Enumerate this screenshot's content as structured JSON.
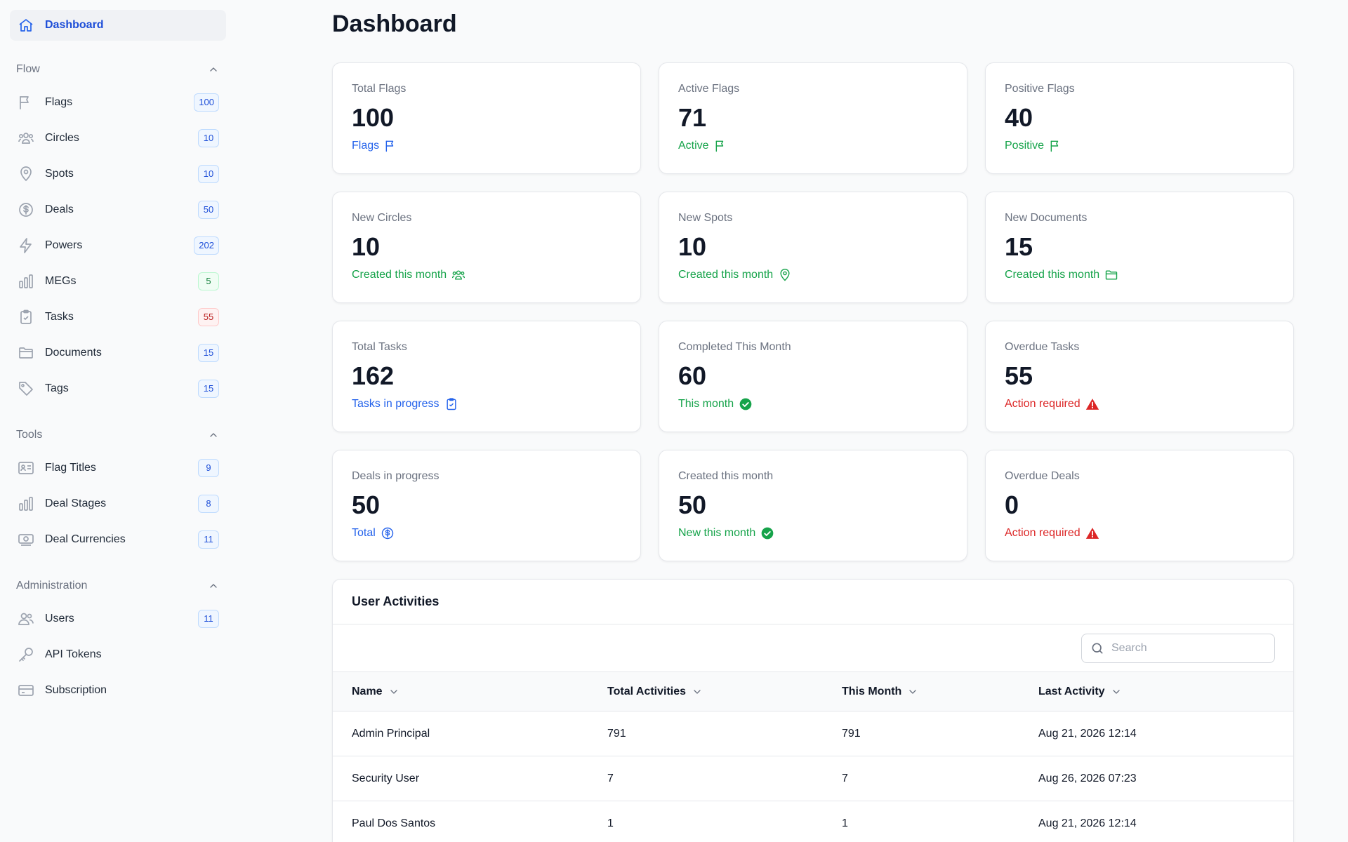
{
  "sidebar": {
    "dashboard": {
      "label": "Dashboard",
      "icon": "home-icon"
    },
    "sections": [
      {
        "title": "Flow",
        "items": [
          {
            "label": "Flags",
            "count": "100",
            "badge": "blue",
            "icon": "flag-icon"
          },
          {
            "label": "Circles",
            "count": "10",
            "badge": "blue",
            "icon": "users-group-icon"
          },
          {
            "label": "Spots",
            "count": "10",
            "badge": "blue",
            "icon": "map-pin-icon"
          },
          {
            "label": "Deals",
            "count": "50",
            "badge": "blue",
            "icon": "dollar-circle-icon"
          },
          {
            "label": "Powers",
            "count": "202",
            "badge": "blue",
            "icon": "bolt-icon"
          },
          {
            "label": "MEGs",
            "count": "5",
            "badge": "green",
            "icon": "bar-chart-icon"
          },
          {
            "label": "Tasks",
            "count": "55",
            "badge": "red",
            "icon": "clipboard-icon"
          },
          {
            "label": "Documents",
            "count": "15",
            "badge": "blue",
            "icon": "folder-icon"
          },
          {
            "label": "Tags",
            "count": "15",
            "badge": "blue",
            "icon": "tag-icon"
          }
        ]
      },
      {
        "title": "Tools",
        "items": [
          {
            "label": "Flag Titles",
            "count": "9",
            "badge": "blue",
            "icon": "id-card-icon"
          },
          {
            "label": "Deal Stages",
            "count": "8",
            "badge": "blue",
            "icon": "bar-chart-icon"
          },
          {
            "label": "Deal Currencies",
            "count": "11",
            "badge": "blue",
            "icon": "banknote-icon"
          }
        ]
      },
      {
        "title": "Administration",
        "items": [
          {
            "label": "Users",
            "count": "11",
            "badge": "blue",
            "icon": "users-icon"
          },
          {
            "label": "API Tokens",
            "count": "",
            "badge": "",
            "icon": "key-icon"
          },
          {
            "label": "Subscription",
            "count": "",
            "badge": "",
            "icon": "credit-card-icon"
          }
        ]
      }
    ]
  },
  "main": {
    "title": "Dashboard",
    "cards": [
      {
        "title": "Total Flags",
        "value": "100",
        "foot": "Flags",
        "color": "blue",
        "icon": "flag-icon"
      },
      {
        "title": "Active Flags",
        "value": "71",
        "foot": "Active",
        "color": "green",
        "icon": "flag-icon"
      },
      {
        "title": "Positive Flags",
        "value": "40",
        "foot": "Positive",
        "color": "green",
        "icon": "flag-icon"
      },
      {
        "title": "New Circles",
        "value": "10",
        "foot": "Created this month",
        "color": "green",
        "icon": "users-group-icon"
      },
      {
        "title": "New Spots",
        "value": "10",
        "foot": "Created this month",
        "color": "green",
        "icon": "map-pin-icon"
      },
      {
        "title": "New Documents",
        "value": "15",
        "foot": "Created this month",
        "color": "green",
        "icon": "folder-icon"
      },
      {
        "title": "Total Tasks",
        "value": "162",
        "foot": "Tasks in progress",
        "color": "blue",
        "icon": "clipboard-icon"
      },
      {
        "title": "Completed This Month",
        "value": "60",
        "foot": "This month",
        "color": "green",
        "icon": "check-circle-icon"
      },
      {
        "title": "Overdue Tasks",
        "value": "55",
        "foot": "Action required",
        "color": "red",
        "icon": "warning-icon"
      },
      {
        "title": "Deals in progress",
        "value": "50",
        "foot": "Total",
        "color": "blue",
        "icon": "dollar-circle-icon"
      },
      {
        "title": "Created this month",
        "value": "50",
        "foot": "New this month",
        "color": "green",
        "icon": "check-circle-icon"
      },
      {
        "title": "Overdue Deals",
        "value": "0",
        "foot": "Action required",
        "color": "red",
        "icon": "warning-icon"
      }
    ],
    "activities": {
      "title": "User Activities",
      "search_placeholder": "Search",
      "columns": [
        "Name",
        "Total Activities",
        "This Month",
        "Last Activity"
      ],
      "rows": [
        [
          "Admin Principal",
          "791",
          "791",
          "Aug 21, 2026 12:14"
        ],
        [
          "Security User",
          "7",
          "7",
          "Aug 26, 2026 07:23"
        ],
        [
          "Paul Dos Santos",
          "1",
          "1",
          "Aug 21, 2026 12:14"
        ]
      ]
    }
  }
}
